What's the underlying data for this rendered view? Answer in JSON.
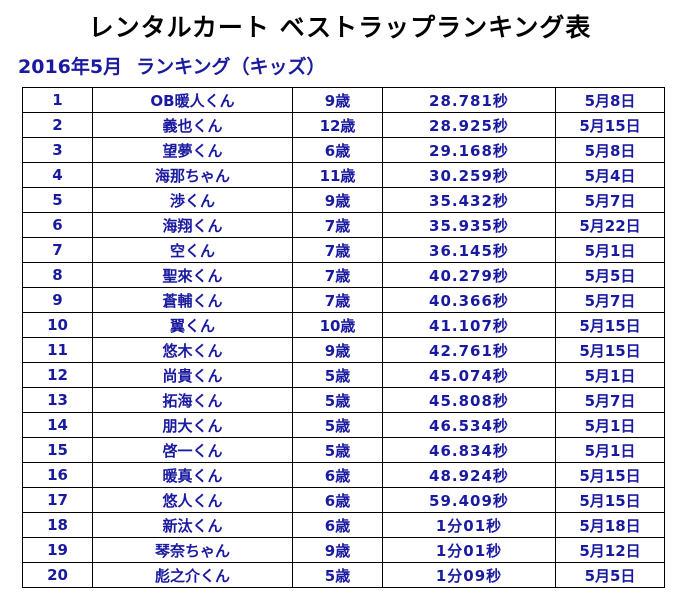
{
  "title": "レンタルカート ベストラップランキング表",
  "subtitle": {
    "period": "2016年5月",
    "category": "ランキング（キッズ）"
  },
  "rows": [
    {
      "rank": "1",
      "name": "OB暖人くん",
      "age": "9歳",
      "time": "28.781秒",
      "date": "5月8日"
    },
    {
      "rank": "2",
      "name": "義也くん",
      "age": "12歳",
      "time": "28.925秒",
      "date": "5月15日"
    },
    {
      "rank": "3",
      "name": "望夢くん",
      "age": "6歳",
      "time": "29.168秒",
      "date": "5月8日"
    },
    {
      "rank": "4",
      "name": "海那ちゃん",
      "age": "11歳",
      "time": "30.259秒",
      "date": "5月4日"
    },
    {
      "rank": "5",
      "name": "渉くん",
      "age": "9歳",
      "time": "35.432秒",
      "date": "5月7日"
    },
    {
      "rank": "6",
      "name": "海翔くん",
      "age": "7歳",
      "time": "35.935秒",
      "date": "5月22日"
    },
    {
      "rank": "7",
      "name": "空くん",
      "age": "7歳",
      "time": "36.145秒",
      "date": "5月1日"
    },
    {
      "rank": "8",
      "name": "聖來くん",
      "age": "7歳",
      "time": "40.279秒",
      "date": "5月5日"
    },
    {
      "rank": "9",
      "name": "蒼輔くん",
      "age": "7歳",
      "time": "40.366秒",
      "date": "5月7日"
    },
    {
      "rank": "10",
      "name": "翼くん",
      "age": "10歳",
      "time": "41.107秒",
      "date": "5月15日"
    },
    {
      "rank": "11",
      "name": "悠木くん",
      "age": "9歳",
      "time": "42.761秒",
      "date": "5月15日"
    },
    {
      "rank": "12",
      "name": "尚貴くん",
      "age": "5歳",
      "time": "45.074秒",
      "date": "5月1日"
    },
    {
      "rank": "13",
      "name": "拓海くん",
      "age": "5歳",
      "time": "45.808秒",
      "date": "5月7日"
    },
    {
      "rank": "14",
      "name": "朋大くん",
      "age": "5歳",
      "time": "46.534秒",
      "date": "5月1日"
    },
    {
      "rank": "15",
      "name": "啓一くん",
      "age": "5歳",
      "time": "46.834秒",
      "date": "5月1日"
    },
    {
      "rank": "16",
      "name": "暖真くん",
      "age": "6歳",
      "time": "48.924秒",
      "date": "5月15日"
    },
    {
      "rank": "17",
      "name": "悠人くん",
      "age": "6歳",
      "time": "59.409秒",
      "date": "5月15日"
    },
    {
      "rank": "18",
      "name": "新汰くん",
      "age": "6歳",
      "time": "1分01秒",
      "date": "5月18日"
    },
    {
      "rank": "19",
      "name": "琴奈ちゃん",
      "age": "9歳",
      "time": "1分01秒",
      "date": "5月12日"
    },
    {
      "rank": "20",
      "name": "彪之介くん",
      "age": "5歳",
      "time": "1分09秒",
      "date": "5月5日"
    }
  ]
}
